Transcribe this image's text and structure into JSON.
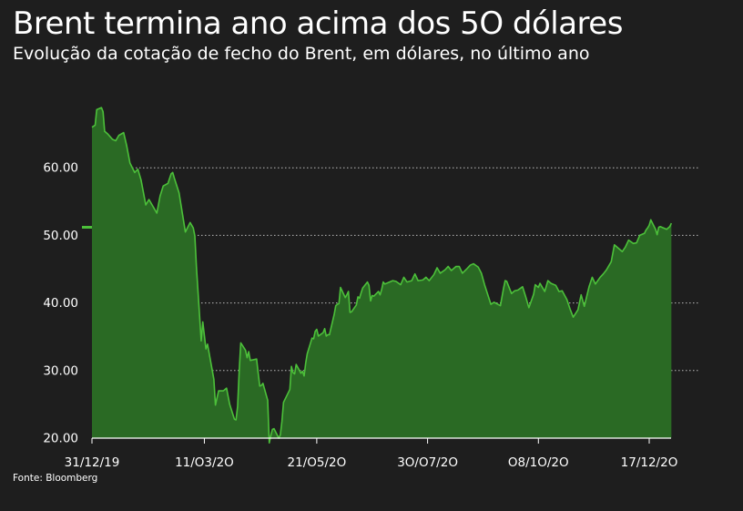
{
  "header": {
    "title": "Brent termina ano acima dos 5O dólares",
    "subtitle": "Evolução da cotação de fecho do Brent, em dólares, no último ano"
  },
  "footer": {
    "source": "Fonte: Bloomberg"
  },
  "colors": {
    "background": "#1e1e1e",
    "line": "#4cc03a",
    "fill": "#2a6a24",
    "text": "#ffffff",
    "grid": "#bbbbbb",
    "marker": "#4cc03a"
  },
  "chart_data": {
    "type": "area",
    "title": "Brent termina ano acima dos 5O dólares",
    "subtitle": "Evolução da cotação de fecho do Brent, em dólares, no último ano",
    "xlabel": "",
    "ylabel": "",
    "ylim": [
      20,
      70
    ],
    "grid": "horizontal dotted",
    "legend": "none",
    "y_ticks": [
      {
        "value": 20,
        "label": "20.00"
      },
      {
        "value": 30,
        "label": "30.00"
      },
      {
        "value": 40,
        "label": "40.00"
      },
      {
        "value": 50,
        "label": "50.00"
      },
      {
        "value": 60,
        "label": "60.00"
      }
    ],
    "x_ticks": [
      {
        "date": "2019-12-31",
        "label": "31/12/19"
      },
      {
        "date": "2020-03-11",
        "label": "11/O3/2O"
      },
      {
        "date": "2020-05-21",
        "label": "21/O5/2O"
      },
      {
        "date": "2020-07-30",
        "label": "3O/O7/2O"
      },
      {
        "date": "2020-10-08",
        "label": "O8/1O/2O"
      },
      {
        "date": "2020-12-17",
        "label": "17/12/2O"
      }
    ],
    "start_marker": 51.2,
    "series": [
      {
        "values": [
          [
            "2019-12-31",
            66.0
          ],
          [
            "2020-01-02",
            66.3
          ],
          [
            "2020-01-03",
            68.6
          ],
          [
            "2020-01-06",
            68.9
          ],
          [
            "2020-01-07",
            68.3
          ],
          [
            "2020-01-08",
            65.4
          ],
          [
            "2020-01-10",
            65.0
          ],
          [
            "2020-01-13",
            64.2
          ],
          [
            "2020-01-15",
            64.0
          ],
          [
            "2020-01-17",
            64.8
          ],
          [
            "2020-01-20",
            65.2
          ],
          [
            "2020-01-22",
            63.2
          ],
          [
            "2020-01-24",
            60.7
          ],
          [
            "2020-01-27",
            59.3
          ],
          [
            "2020-01-29",
            59.8
          ],
          [
            "2020-01-31",
            58.2
          ],
          [
            "2020-02-03",
            54.5
          ],
          [
            "2020-02-05",
            55.3
          ],
          [
            "2020-02-07",
            54.5
          ],
          [
            "2020-02-10",
            53.3
          ],
          [
            "2020-02-12",
            55.8
          ],
          [
            "2020-02-14",
            57.3
          ],
          [
            "2020-02-17",
            57.7
          ],
          [
            "2020-02-19",
            59.1
          ],
          [
            "2020-02-20",
            59.3
          ],
          [
            "2020-02-21",
            58.5
          ],
          [
            "2020-02-24",
            56.3
          ],
          [
            "2020-02-26",
            53.4
          ],
          [
            "2020-02-28",
            50.5
          ],
          [
            "2020-03-02",
            51.9
          ],
          [
            "2020-03-04",
            51.1
          ],
          [
            "2020-03-05",
            49.9
          ],
          [
            "2020-03-06",
            45.3
          ],
          [
            "2020-03-09",
            34.4
          ],
          [
            "2020-03-10",
            37.2
          ],
          [
            "2020-03-12",
            33.2
          ],
          [
            "2020-03-13",
            33.9
          ],
          [
            "2020-03-16",
            30.0
          ],
          [
            "2020-03-17",
            28.7
          ],
          [
            "2020-03-18",
            24.9
          ],
          [
            "2020-03-20",
            27.0
          ],
          [
            "2020-03-23",
            27.0
          ],
          [
            "2020-03-25",
            27.4
          ],
          [
            "2020-03-27",
            25.0
          ],
          [
            "2020-03-30",
            22.8
          ],
          [
            "2020-03-31",
            22.7
          ],
          [
            "2020-04-01",
            24.7
          ],
          [
            "2020-04-02",
            29.9
          ],
          [
            "2020-04-03",
            34.1
          ],
          [
            "2020-04-06",
            33.0
          ],
          [
            "2020-04-07",
            31.9
          ],
          [
            "2020-04-08",
            32.8
          ],
          [
            "2020-04-09",
            31.5
          ],
          [
            "2020-04-13",
            31.7
          ],
          [
            "2020-04-14",
            29.6
          ],
          [
            "2020-04-15",
            27.7
          ],
          [
            "2020-04-16",
            27.8
          ],
          [
            "2020-04-17",
            28.1
          ],
          [
            "2020-04-20",
            25.6
          ],
          [
            "2020-04-21",
            19.3
          ],
          [
            "2020-04-22",
            20.4
          ],
          [
            "2020-04-23",
            21.3
          ],
          [
            "2020-04-24",
            21.4
          ],
          [
            "2020-04-27",
            20.0
          ],
          [
            "2020-04-28",
            20.5
          ],
          [
            "2020-04-29",
            22.5
          ],
          [
            "2020-04-30",
            25.3
          ],
          [
            "2020-05-04",
            27.2
          ],
          [
            "2020-05-05",
            30.6
          ],
          [
            "2020-05-06",
            29.7
          ],
          [
            "2020-05-07",
            29.5
          ],
          [
            "2020-05-08",
            30.9
          ],
          [
            "2020-05-11",
            29.6
          ],
          [
            "2020-05-12",
            29.9
          ],
          [
            "2020-05-13",
            29.2
          ],
          [
            "2020-05-14",
            31.1
          ],
          [
            "2020-05-15",
            32.5
          ],
          [
            "2020-05-18",
            34.8
          ],
          [
            "2020-05-19",
            34.7
          ],
          [
            "2020-05-20",
            35.8
          ],
          [
            "2020-05-21",
            36.1
          ],
          [
            "2020-05-22",
            35.1
          ],
          [
            "2020-05-25",
            35.6
          ],
          [
            "2020-05-26",
            36.2
          ],
          [
            "2020-05-27",
            35.1
          ],
          [
            "2020-05-28",
            35.3
          ],
          [
            "2020-05-29",
            35.3
          ],
          [
            "2020-06-01",
            38.3
          ],
          [
            "2020-06-02",
            39.6
          ],
          [
            "2020-06-03",
            39.8
          ],
          [
            "2020-06-04",
            39.9
          ],
          [
            "2020-06-05",
            42.3
          ],
          [
            "2020-06-08",
            40.8
          ],
          [
            "2020-06-09",
            41.2
          ],
          [
            "2020-06-10",
            41.7
          ],
          [
            "2020-06-11",
            38.6
          ],
          [
            "2020-06-12",
            38.7
          ],
          [
            "2020-06-15",
            39.7
          ],
          [
            "2020-06-16",
            40.9
          ],
          [
            "2020-06-17",
            40.7
          ],
          [
            "2020-06-18",
            41.5
          ],
          [
            "2020-06-19",
            42.2
          ],
          [
            "2020-06-22",
            43.1
          ],
          [
            "2020-06-23",
            42.6
          ],
          [
            "2020-06-24",
            40.3
          ],
          [
            "2020-06-25",
            41.1
          ],
          [
            "2020-06-26",
            41.0
          ],
          [
            "2020-06-29",
            41.7
          ],
          [
            "2020-06-30",
            41.2
          ],
          [
            "2020-07-01",
            42.0
          ],
          [
            "2020-07-02",
            43.1
          ],
          [
            "2020-07-03",
            42.8
          ],
          [
            "2020-07-06",
            43.1
          ],
          [
            "2020-07-08",
            43.3
          ],
          [
            "2020-07-10",
            43.2
          ],
          [
            "2020-07-13",
            42.7
          ],
          [
            "2020-07-15",
            43.8
          ],
          [
            "2020-07-17",
            43.1
          ],
          [
            "2020-07-20",
            43.3
          ],
          [
            "2020-07-22",
            44.3
          ],
          [
            "2020-07-24",
            43.3
          ],
          [
            "2020-07-27",
            43.4
          ],
          [
            "2020-07-29",
            43.8
          ],
          [
            "2020-07-31",
            43.3
          ],
          [
            "2020-08-03",
            44.2
          ],
          [
            "2020-08-05",
            45.2
          ],
          [
            "2020-08-07",
            44.4
          ],
          [
            "2020-08-10",
            44.9
          ],
          [
            "2020-08-12",
            45.4
          ],
          [
            "2020-08-14",
            44.8
          ],
          [
            "2020-08-17",
            45.4
          ],
          [
            "2020-08-19",
            45.4
          ],
          [
            "2020-08-21",
            44.4
          ],
          [
            "2020-08-24",
            45.1
          ],
          [
            "2020-08-26",
            45.6
          ],
          [
            "2020-08-28",
            45.8
          ],
          [
            "2020-08-31",
            45.3
          ],
          [
            "2020-09-02",
            44.4
          ],
          [
            "2020-09-04",
            42.7
          ],
          [
            "2020-09-08",
            39.8
          ],
          [
            "2020-09-10",
            40.1
          ],
          [
            "2020-09-14",
            39.6
          ],
          [
            "2020-09-16",
            42.2
          ],
          [
            "2020-09-17",
            43.3
          ],
          [
            "2020-09-18",
            43.2
          ],
          [
            "2020-09-21",
            41.4
          ],
          [
            "2020-09-23",
            41.8
          ],
          [
            "2020-09-25",
            41.9
          ],
          [
            "2020-09-28",
            42.4
          ],
          [
            "2020-09-30",
            40.9
          ],
          [
            "2020-10-02",
            39.3
          ],
          [
            "2020-10-05",
            41.3
          ],
          [
            "2020-10-06",
            42.7
          ],
          [
            "2020-10-08",
            42.3
          ],
          [
            "2020-10-09",
            42.9
          ],
          [
            "2020-10-12",
            41.7
          ],
          [
            "2020-10-14",
            43.3
          ],
          [
            "2020-10-16",
            42.9
          ],
          [
            "2020-10-19",
            42.6
          ],
          [
            "2020-10-21",
            41.7
          ],
          [
            "2020-10-23",
            41.8
          ],
          [
            "2020-10-26",
            40.5
          ],
          [
            "2020-10-28",
            39.1
          ],
          [
            "2020-10-30",
            37.9
          ],
          [
            "2020-11-02",
            39.0
          ],
          [
            "2020-11-04",
            41.2
          ],
          [
            "2020-11-06",
            39.5
          ],
          [
            "2020-11-09",
            42.4
          ],
          [
            "2020-11-11",
            43.8
          ],
          [
            "2020-11-13",
            42.8
          ],
          [
            "2020-11-16",
            43.8
          ],
          [
            "2020-11-18",
            44.3
          ],
          [
            "2020-11-20",
            44.9
          ],
          [
            "2020-11-23",
            46.1
          ],
          [
            "2020-11-25",
            48.6
          ],
          [
            "2020-11-27",
            48.2
          ],
          [
            "2020-11-30",
            47.6
          ],
          [
            "2020-12-02",
            48.3
          ],
          [
            "2020-12-04",
            49.3
          ],
          [
            "2020-12-07",
            48.8
          ],
          [
            "2020-12-09",
            48.9
          ],
          [
            "2020-12-11",
            50.0
          ],
          [
            "2020-12-14",
            50.3
          ],
          [
            "2020-12-15",
            50.8
          ],
          [
            "2020-12-16",
            51.1
          ],
          [
            "2020-12-17",
            51.5
          ],
          [
            "2020-12-18",
            52.3
          ],
          [
            "2020-12-21",
            50.9
          ],
          [
            "2020-12-22",
            50.1
          ],
          [
            "2020-12-23",
            51.2
          ],
          [
            "2020-12-24",
            51.3
          ],
          [
            "2020-12-28",
            50.9
          ],
          [
            "2020-12-29",
            51.1
          ],
          [
            "2020-12-30",
            51.3
          ],
          [
            "2020-12-31",
            51.8
          ]
        ]
      }
    ]
  }
}
